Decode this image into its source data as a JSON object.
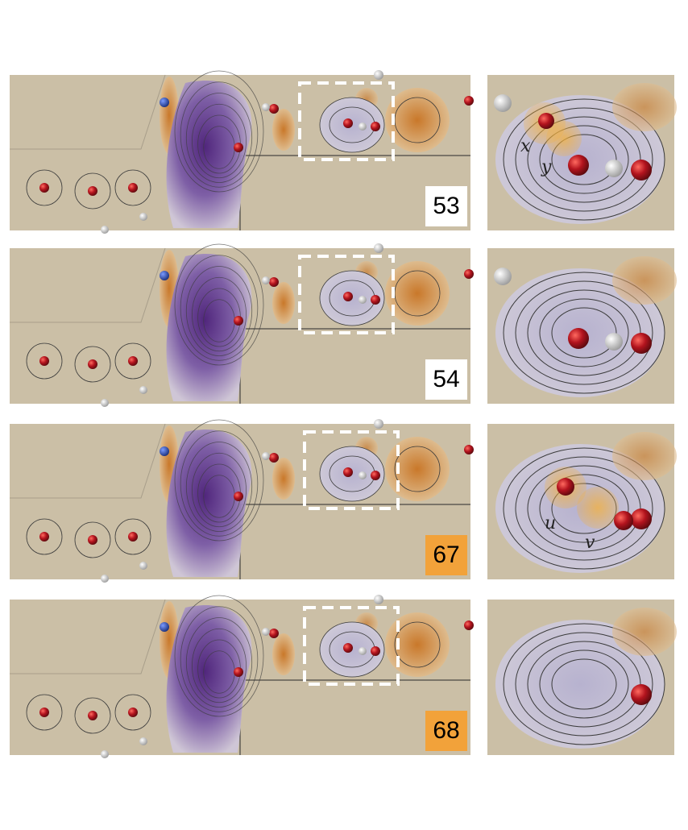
{
  "frames": [
    {
      "label": "53",
      "highlight": false,
      "inset_labels": [
        "x",
        "y"
      ]
    },
    {
      "label": "54",
      "highlight": false,
      "inset_labels": []
    },
    {
      "label": "67",
      "highlight": true,
      "inset_labels": [
        "u",
        "v"
      ]
    },
    {
      "label": "68",
      "highlight": true,
      "inset_labels": []
    }
  ],
  "colors": {
    "background": "#cbbfa6",
    "negative": "#4a1e7a",
    "positive": "#c9782a",
    "highlight_badge": "#f2a23a",
    "oxygen": "#b3141e",
    "hydrogen": "#e6e6e6",
    "ion": "#2b4fae"
  }
}
